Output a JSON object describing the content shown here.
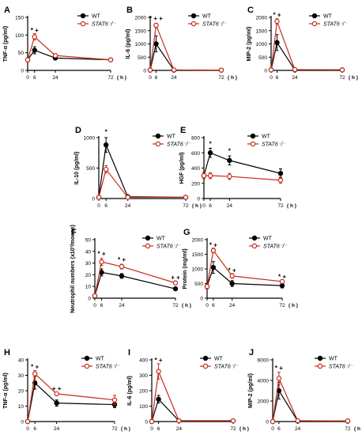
{
  "figure": {
    "time_unit": "( h )",
    "colors": {
      "wt": "#000000",
      "ko": "#c62b1a",
      "ko_fill": "#ffffff"
    }
  },
  "chart_data": [
    {
      "id": "A",
      "panel_letter": "A",
      "type": "line",
      "ylabel": "TNF-α (pg/ml)",
      "ylim": [
        0,
        150
      ],
      "yticks": [
        0,
        50,
        100,
        150
      ],
      "xticks": [
        "0",
        "6",
        "24",
        "72"
      ],
      "xlim": [
        0,
        72
      ],
      "series": [
        {
          "name": "WT",
          "x": [
            0,
            6,
            24,
            72
          ],
          "values": [
            30,
            57,
            35,
            30
          ],
          "err": [
            2,
            10,
            3,
            2
          ]
        },
        {
          "name": "STAT6⁻/⁻",
          "x": [
            0,
            6,
            24,
            72
          ],
          "values": [
            30,
            95,
            42,
            30
          ],
          "err": [
            2,
            9,
            4,
            2
          ]
        }
      ],
      "legend": "top-right",
      "significance": [
        {
          "x": 6,
          "y": 108,
          "text": "* +"
        }
      ]
    },
    {
      "id": "B",
      "panel_letter": "B",
      "type": "line",
      "ylabel": "IL-6 (pg/ml)",
      "ylim": [
        0,
        2000
      ],
      "yticks": [
        0,
        500,
        1000,
        1500,
        2000
      ],
      "xticks": [
        "0",
        "6",
        "24",
        "72"
      ],
      "xlim": [
        0,
        72
      ],
      "series": [
        {
          "name": "WT",
          "x": [
            0,
            6,
            24,
            72
          ],
          "values": [
            10,
            1000,
            10,
            10
          ],
          "err": [
            3,
            300,
            3,
            3
          ]
        },
        {
          "name": "STAT6⁻/⁻",
          "x": [
            0,
            6,
            24,
            72
          ],
          "values": [
            10,
            1700,
            20,
            10
          ],
          "err": [
            3,
            80,
            5,
            3
          ]
        }
      ],
      "legend": "top-right",
      "significance": [
        {
          "x": 6,
          "y": 1880,
          "text": "* + +"
        }
      ]
    },
    {
      "id": "C",
      "panel_letter": "C",
      "type": "line",
      "ylabel": "MIP-2 (pg/ml)",
      "ylim": [
        0,
        2000
      ],
      "yticks": [
        0,
        500,
        1000,
        1500,
        2000
      ],
      "xticks": [
        "0",
        "6",
        "24",
        "72"
      ],
      "xlim": [
        0,
        72
      ],
      "series": [
        {
          "name": "WT",
          "x": [
            0,
            6,
            24,
            72
          ],
          "values": [
            20,
            1050,
            20,
            20
          ],
          "err": [
            3,
            300,
            4,
            3
          ]
        },
        {
          "name": "STAT6⁻/⁻",
          "x": [
            0,
            6,
            24,
            72
          ],
          "values": [
            20,
            1850,
            30,
            20
          ],
          "err": [
            3,
            100,
            5,
            3
          ]
        }
      ],
      "legend": "top-right",
      "significance": [
        {
          "x": 6,
          "y": 2010,
          "text": "* +"
        }
      ]
    },
    {
      "id": "D",
      "panel_letter": "D",
      "type": "line",
      "ylabel": "IL-10 (pg/ml)",
      "ylim": [
        0,
        1000
      ],
      "yticks": [
        0,
        500,
        1000
      ],
      "xticks": [
        "0",
        "6",
        "24",
        "72"
      ],
      "xlim": [
        0,
        72
      ],
      "series": [
        {
          "name": "WT",
          "x": [
            0,
            6,
            24,
            72
          ],
          "values": [
            20,
            880,
            30,
            20
          ],
          "err": [
            3,
            120,
            5,
            3
          ]
        },
        {
          "name": "STAT6⁻/⁻",
          "x": [
            0,
            6,
            24,
            72
          ],
          "values": [
            20,
            480,
            20,
            20
          ],
          "err": [
            3,
            60,
            5,
            3
          ]
        }
      ],
      "legend": "top-right",
      "significance": [
        {
          "x": 6,
          "y": 1060,
          "text": "*"
        }
      ]
    },
    {
      "id": "E",
      "panel_letter": "E",
      "type": "line",
      "ylabel": "HGF (pg/ml)",
      "ylim": [
        0,
        800
      ],
      "yticks": [
        0,
        200,
        400,
        600,
        800
      ],
      "xticks": [
        "0",
        "6",
        "24",
        "72"
      ],
      "xlim": [
        0,
        72
      ],
      "series": [
        {
          "name": "WT",
          "x": [
            0,
            6,
            24,
            72
          ],
          "values": [
            300,
            600,
            500,
            330
          ],
          "err": [
            40,
            60,
            60,
            60
          ]
        },
        {
          "name": "STAT6⁻/⁻",
          "x": [
            0,
            6,
            24,
            72
          ],
          "values": [
            300,
            300,
            290,
            240
          ],
          "err": [
            40,
            40,
            40,
            40
          ]
        }
      ],
      "legend": "top-right",
      "significance": [
        {
          "x": 6,
          "y": 690,
          "text": "*"
        },
        {
          "x": 24,
          "y": 600,
          "text": "*"
        }
      ]
    },
    {
      "id": "F",
      "panel_letter": "F",
      "type": "line",
      "ylabel": "Neutrophil numbers (x10³/mouse)",
      "ylim": [
        0,
        50
      ],
      "yticks": [
        0,
        10,
        20,
        30,
        40,
        50
      ],
      "xticks": [
        "0",
        "6",
        "24",
        "72"
      ],
      "xlim": [
        0,
        72
      ],
      "series": [
        {
          "name": "WT",
          "x": [
            0,
            6,
            24,
            72
          ],
          "values": [
            2,
            22,
            19,
            8
          ],
          "err": [
            1,
            3,
            2,
            1
          ]
        },
        {
          "name": "STAT6⁻/⁻",
          "x": [
            0,
            6,
            24,
            72
          ],
          "values": [
            2,
            31,
            27,
            13
          ],
          "err": [
            1,
            3,
            2,
            1
          ]
        }
      ],
      "legend": "top-right",
      "significance": [
        {
          "x": 6,
          "y": 36,
          "text": "* +"
        },
        {
          "x": 24,
          "y": 31,
          "text": "* +"
        },
        {
          "x": 72,
          "y": 16,
          "text": "+ +"
        }
      ]
    },
    {
      "id": "G",
      "panel_letter": "G",
      "type": "line",
      "ylabel": "Protein (mg/ml)",
      "ylim": [
        0,
        2000
      ],
      "yticks": [
        0,
        500,
        1000,
        1500,
        2000
      ],
      "xticks": [
        "0",
        "6",
        "24",
        "72"
      ],
      "xlim": [
        0,
        72
      ],
      "series": [
        {
          "name": "WT",
          "x": [
            0,
            6,
            24,
            72
          ],
          "values": [
            400,
            1050,
            500,
            430
          ],
          "err": [
            80,
            200,
            100,
            80
          ]
        },
        {
          "name": "STAT6⁻/⁻",
          "x": [
            0,
            6,
            24,
            72
          ],
          "values": [
            400,
            1630,
            760,
            570
          ],
          "err": [
            80,
            80,
            80,
            60
          ]
        }
      ],
      "legend": "top-right",
      "significance": [
        {
          "x": 6,
          "y": 1750,
          "text": "* +"
        },
        {
          "x": 24,
          "y": 880,
          "text": "* +"
        },
        {
          "x": 72,
          "y": 660,
          "text": "* +"
        }
      ]
    },
    {
      "id": "H",
      "panel_letter": "H",
      "type": "line",
      "ylabel": "TNF-α (pg/ml)",
      "ylim": [
        0,
        40
      ],
      "yticks": [
        0,
        10,
        20,
        30,
        40
      ],
      "xticks": [
        "0",
        "6",
        "24",
        "72"
      ],
      "xlim": [
        0,
        72
      ],
      "series": [
        {
          "name": "WT",
          "x": [
            0,
            6,
            24,
            72
          ],
          "values": [
            0,
            25,
            12,
            11
          ],
          "err": [
            0,
            4,
            2,
            2
          ]
        },
        {
          "name": "STAT6⁻/⁻",
          "x": [
            0,
            6,
            24,
            72
          ],
          "values": [
            0,
            31,
            18,
            14
          ],
          "err": [
            0,
            2,
            1,
            3
          ]
        }
      ],
      "legend": "top-right",
      "significance": [
        {
          "x": 6,
          "y": 34,
          "text": "* +"
        },
        {
          "x": 24,
          "y": 20,
          "text": "+ +"
        }
      ]
    },
    {
      "id": "I",
      "panel_letter": "I",
      "type": "line",
      "ylabel": "IL-6 (pg/ml)",
      "ylim": [
        0,
        400
      ],
      "yticks": [
        0,
        100,
        200,
        300,
        400
      ],
      "xticks": [
        "0",
        "6",
        "24",
        "72"
      ],
      "xlim": [
        0,
        72
      ],
      "series": [
        {
          "name": "WT",
          "x": [
            0,
            6,
            24,
            72
          ],
          "values": [
            0,
            145,
            5,
            5
          ],
          "err": [
            0,
            25,
            3,
            2
          ]
        },
        {
          "name": "STAT6⁻/⁻",
          "x": [
            0,
            6,
            24,
            72
          ],
          "values": [
            0,
            325,
            5,
            5
          ],
          "err": [
            0,
            50,
            3,
            2
          ]
        }
      ],
      "legend": "top-right",
      "significance": [
        {
          "x": 6,
          "y": 385,
          "text": "* +"
        }
      ]
    },
    {
      "id": "J",
      "panel_letter": "J",
      "type": "line",
      "ylabel": "MIP-2 (pg/ml)",
      "ylim": [
        0,
        6000
      ],
      "yticks": [
        0,
        2000,
        4000,
        6000
      ],
      "xticks": [
        "0",
        "6",
        "24",
        "72"
      ],
      "xlim": [
        0,
        72
      ],
      "series": [
        {
          "name": "WT",
          "x": [
            0,
            6,
            24,
            72
          ],
          "values": [
            0,
            3000,
            50,
            50
          ],
          "err": [
            0,
            800,
            20,
            20
          ]
        },
        {
          "name": "STAT6⁻/⁻",
          "x": [
            0,
            6,
            24,
            72
          ],
          "values": [
            0,
            4200,
            80,
            60
          ],
          "err": [
            0,
            600,
            30,
            20
          ]
        }
      ],
      "legend": "top-right",
      "significance": [
        {
          "x": 6,
          "y": 5000,
          "text": "* +"
        }
      ]
    }
  ]
}
